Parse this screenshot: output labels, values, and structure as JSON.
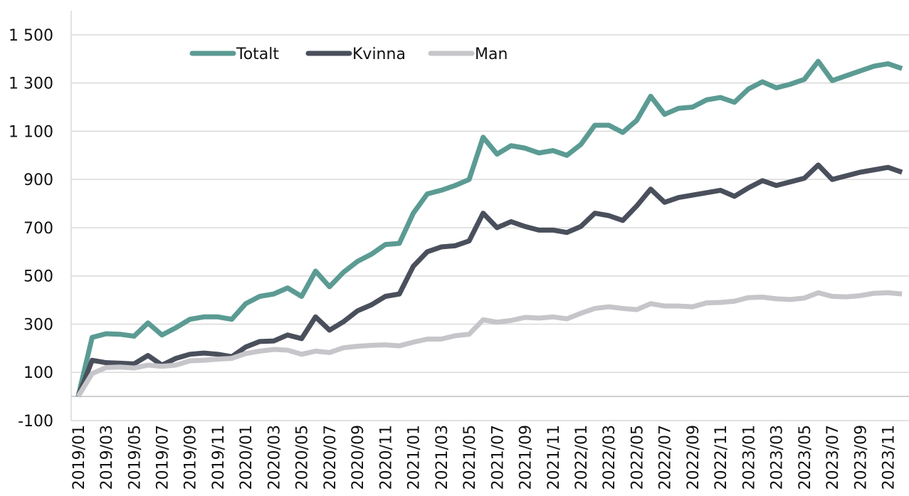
{
  "chart_data": {
    "type": "line",
    "categories": [
      "2019/01",
      null,
      "2019/03",
      null,
      "2019/05",
      null,
      "2019/07",
      null,
      "2019/09",
      null,
      "2019/11",
      null,
      "2020/01",
      null,
      "2020/03",
      null,
      "2020/05",
      null,
      "2020/07",
      null,
      "2020/09",
      null,
      "2020/11",
      null,
      "2021/01",
      null,
      "2021/03",
      null,
      "2021/05",
      null,
      "2021/07",
      null,
      "2021/09",
      null,
      "2021/11",
      null,
      "2022/01",
      null,
      "2022/03",
      null,
      "2022/05",
      null,
      "2022/07",
      null,
      "2022/09",
      null,
      "2022/11",
      null,
      "2023/01",
      null,
      "2023/03",
      null,
      "2023/05",
      null,
      "2023/07",
      null,
      "2023/09",
      null,
      "2023/11",
      null
    ],
    "series": [
      {
        "name": "Totalt",
        "color": "#5b9b93",
        "values": [
          0,
          245,
          260,
          258,
          250,
          305,
          255,
          285,
          320,
          330,
          330,
          320,
          385,
          415,
          425,
          450,
          415,
          520,
          455,
          515,
          560,
          590,
          630,
          635,
          760,
          840,
          855,
          875,
          900,
          1075,
          1005,
          1040,
          1030,
          1010,
          1020,
          1000,
          1045,
          1125,
          1125,
          1095,
          1145,
          1245,
          1170,
          1195,
          1200,
          1230,
          1240,
          1220,
          1275,
          1305,
          1280,
          1295,
          1315,
          1390,
          1310,
          1330,
          1350,
          1370,
          1380,
          1360
        ]
      },
      {
        "name": "Kvinna",
        "color": "#4a4f5c",
        "values": [
          0,
          150,
          140,
          138,
          135,
          170,
          130,
          158,
          175,
          180,
          175,
          165,
          205,
          228,
          230,
          255,
          240,
          330,
          275,
          310,
          355,
          380,
          415,
          425,
          540,
          600,
          620,
          625,
          645,
          760,
          700,
          725,
          705,
          690,
          690,
          680,
          705,
          760,
          750,
          730,
          790,
          860,
          805,
          825,
          835,
          845,
          855,
          830,
          865,
          895,
          875,
          890,
          905,
          960,
          900,
          915,
          930,
          940,
          950,
          930
        ]
      },
      {
        "name": "Man",
        "color": "#c6c6ca",
        "values": [
          0,
          95,
          120,
          122,
          118,
          130,
          125,
          130,
          148,
          150,
          155,
          158,
          178,
          188,
          195,
          192,
          175,
          188,
          182,
          202,
          208,
          212,
          214,
          210,
          225,
          238,
          238,
          252,
          258,
          318,
          308,
          315,
          328,
          325,
          330,
          322,
          345,
          365,
          372,
          365,
          360,
          385,
          375,
          375,
          372,
          388,
          390,
          395,
          410,
          412,
          405,
          402,
          408,
          430,
          415,
          413,
          418,
          428,
          430,
          425
        ]
      }
    ],
    "ylim": [
      -100,
      1600
    ],
    "yticks": [
      -100,
      100,
      300,
      500,
      700,
      900,
      {
        "value": 1100,
        "label": "1 100"
      },
      {
        "value": 1300,
        "label": "1 300"
      },
      {
        "value": 1500,
        "label": "1 500"
      }
    ],
    "grid": true,
    "legend": "top"
  }
}
